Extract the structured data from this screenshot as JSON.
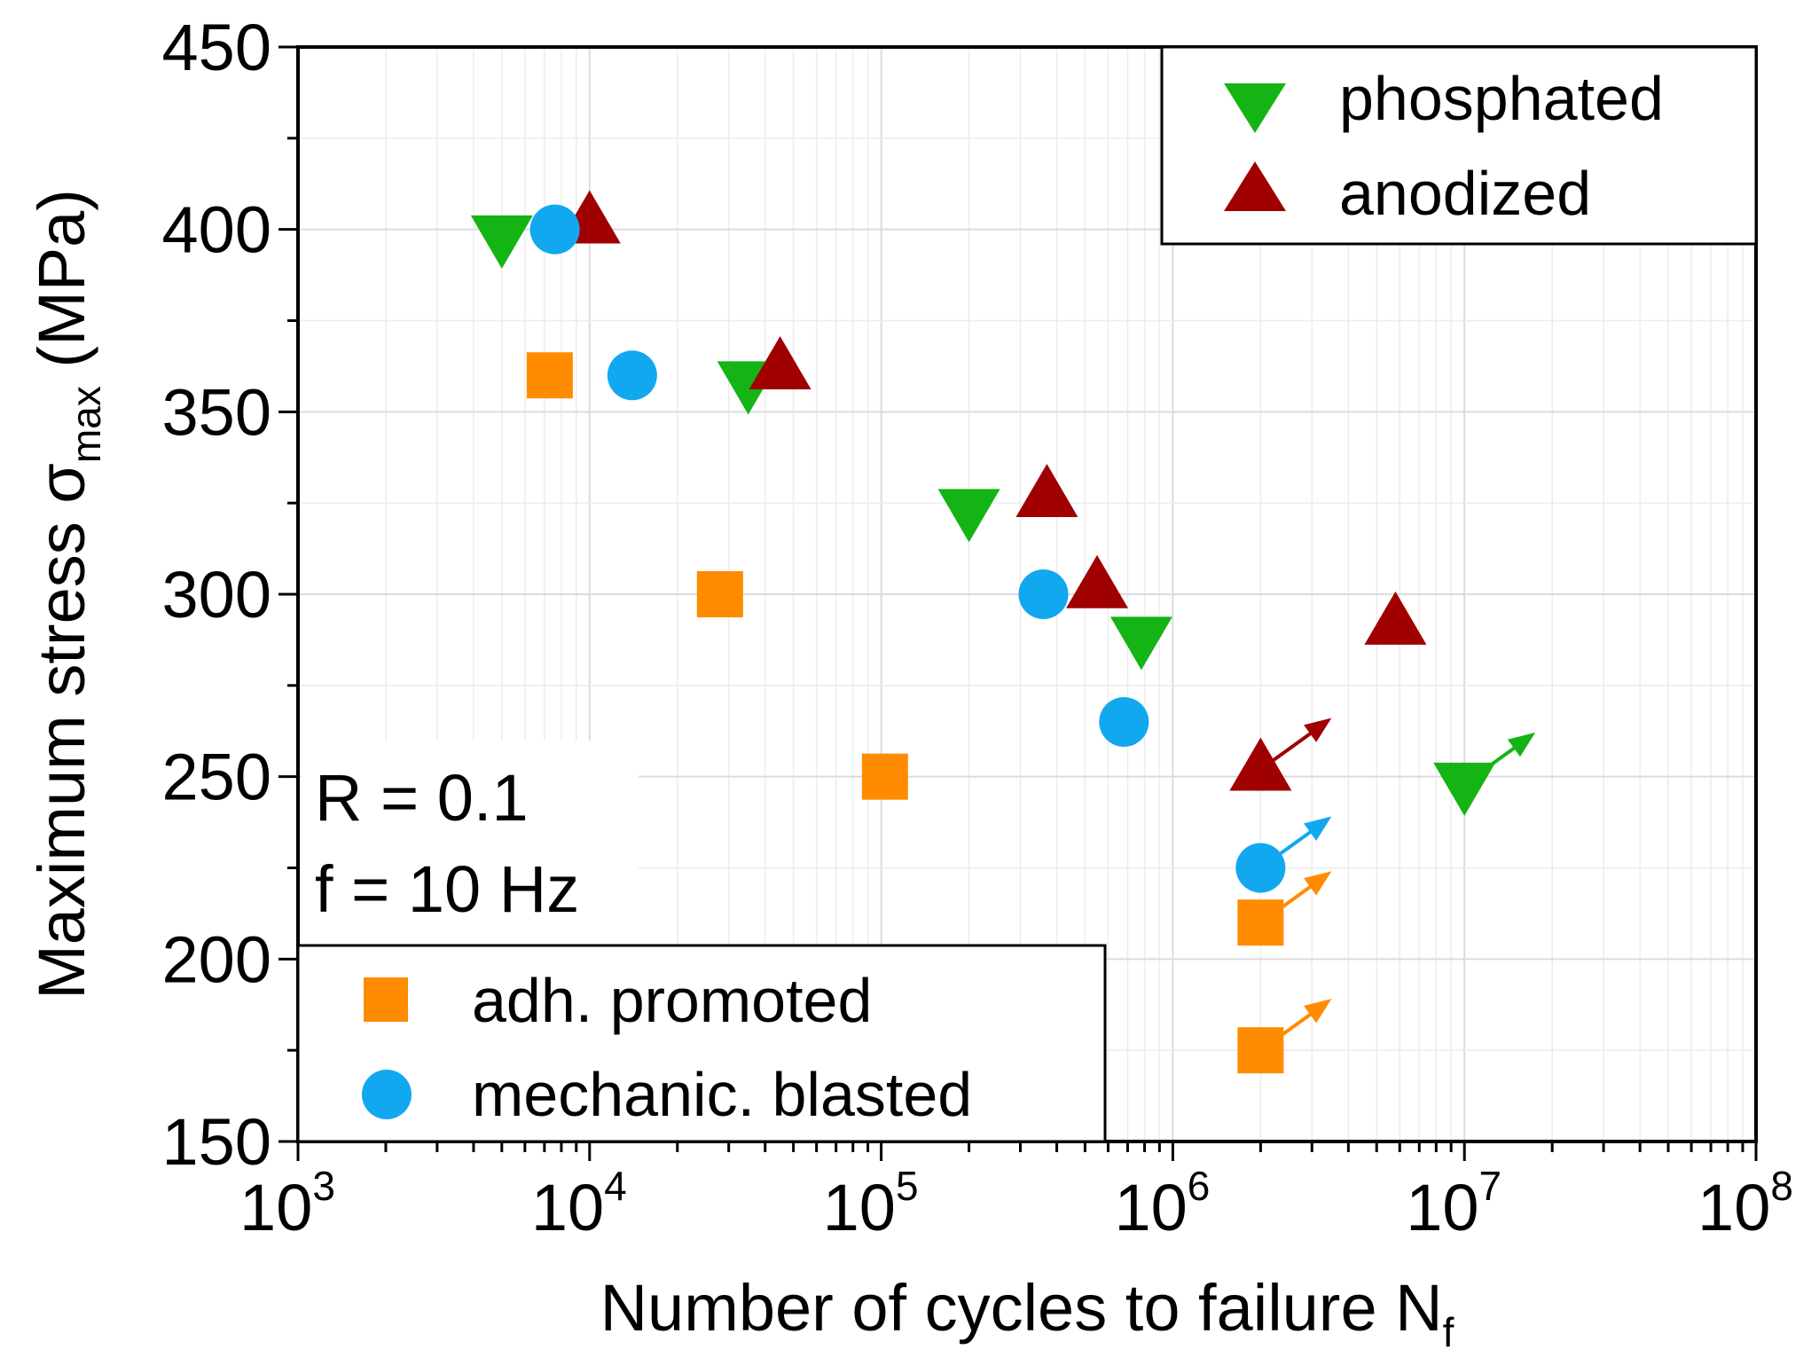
{
  "chart_data": {
    "type": "scatter",
    "title": "",
    "xlabel": {
      "main": "Number of cycles to failure N",
      "sub": "f"
    },
    "ylabel": {
      "main": "Maximum stress σ",
      "sub": "max",
      "unit": "(MPa)"
    },
    "x_scale": "log",
    "xlim": [
      1000,
      100000000
    ],
    "ylim": [
      150,
      450
    ],
    "grid": true,
    "x_ticks": [
      {
        "value": 1000,
        "base": "10",
        "exp": "3"
      },
      {
        "value": 10000,
        "base": "10",
        "exp": "4"
      },
      {
        "value": 100000,
        "base": "10",
        "exp": "5"
      },
      {
        "value": 1000000,
        "base": "10",
        "exp": "6"
      },
      {
        "value": 10000000,
        "base": "10",
        "exp": "7"
      },
      {
        "value": 100000000,
        "base": "10",
        "exp": "8"
      }
    ],
    "y_ticks": [
      {
        "value": 150,
        "label": "150"
      },
      {
        "value": 200,
        "label": "200"
      },
      {
        "value": 250,
        "label": "250"
      },
      {
        "value": 300,
        "label": "300"
      },
      {
        "value": 350,
        "label": "350"
      },
      {
        "value": 400,
        "label": "400"
      },
      {
        "value": 450,
        "label": "450"
      }
    ],
    "annotations": [
      "R = 0.1",
      "f = 10 Hz"
    ],
    "series": [
      {
        "name": "phosphated",
        "marker": "triangle-down",
        "color": "#14b414",
        "legend": "top-right",
        "points": [
          {
            "x": 5000,
            "y": 398
          },
          {
            "x": 35000,
            "y": 358
          },
          {
            "x": 200000,
            "y": 323
          },
          {
            "x": 780000,
            "y": 288
          },
          {
            "x": 10000000,
            "y": 248,
            "runout": true
          }
        ]
      },
      {
        "name": "anodized",
        "marker": "triangle-up",
        "color": "#a00000",
        "legend": "top-right",
        "points": [
          {
            "x": 10000,
            "y": 402
          },
          {
            "x": 45000,
            "y": 362
          },
          {
            "x": 370000,
            "y": 327
          },
          {
            "x": 550000,
            "y": 302
          },
          {
            "x": 5800000,
            "y": 292
          },
          {
            "x": 2000000,
            "y": 252,
            "runout": true
          }
        ]
      },
      {
        "name": "adh. promoted",
        "marker": "square",
        "color": "#ff8c00",
        "legend": "bottom-left",
        "points": [
          {
            "x": 7300,
            "y": 360
          },
          {
            "x": 28000,
            "y": 300
          },
          {
            "x": 103000,
            "y": 250
          },
          {
            "x": 2000000,
            "y": 210,
            "runout": true
          },
          {
            "x": 2000000,
            "y": 175,
            "runout": true
          }
        ]
      },
      {
        "name": "mechanic. blasted",
        "marker": "circle",
        "color": "#12a8f0",
        "legend": "bottom-left",
        "points": [
          {
            "x": 7600,
            "y": 400
          },
          {
            "x": 14000,
            "y": 360
          },
          {
            "x": 360000,
            "y": 300
          },
          {
            "x": 680000,
            "y": 265
          },
          {
            "x": 2000000,
            "y": 225,
            "runout": true
          }
        ]
      }
    ]
  }
}
